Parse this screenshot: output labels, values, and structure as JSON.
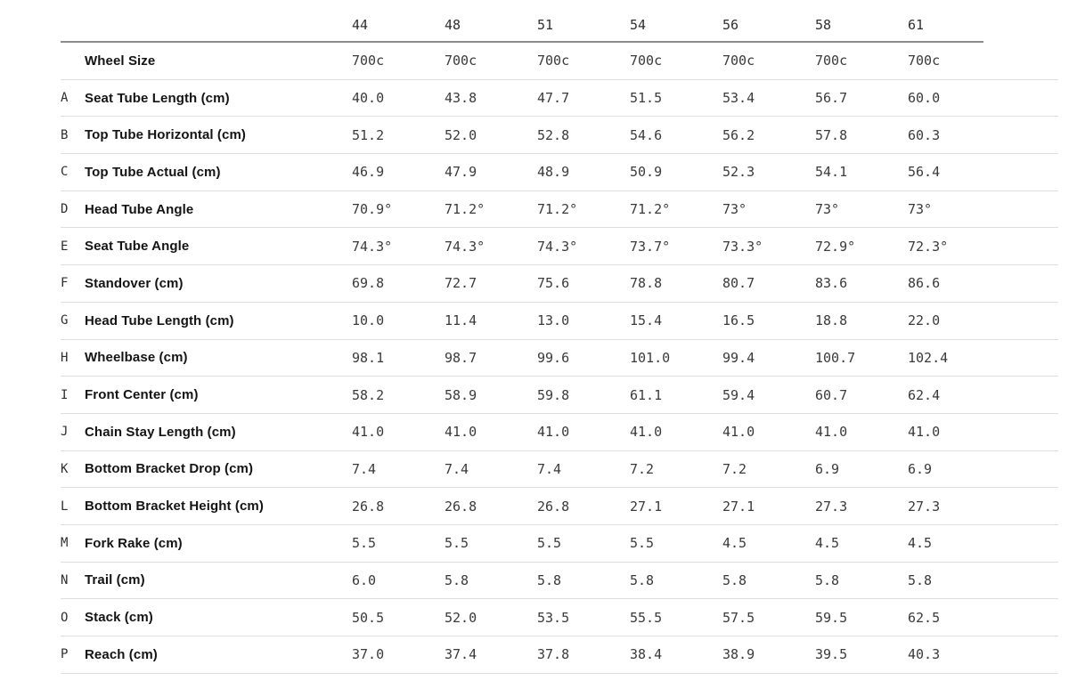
{
  "chart_data": {
    "type": "table",
    "title": "",
    "columns": [
      "44",
      "48",
      "51",
      "54",
      "56",
      "58",
      "61"
    ],
    "rows": [
      {
        "letter": "",
        "label": "Wheel Size",
        "values": [
          "700c",
          "700c",
          "700c",
          "700c",
          "700c",
          "700c",
          "700c"
        ]
      },
      {
        "letter": "A",
        "label": "Seat Tube Length (cm)",
        "values": [
          "40.0",
          "43.8",
          "47.7",
          "51.5",
          "53.4",
          "56.7",
          "60.0"
        ]
      },
      {
        "letter": "B",
        "label": "Top Tube Horizontal (cm)",
        "values": [
          "51.2",
          "52.0",
          "52.8",
          "54.6",
          "56.2",
          "57.8",
          "60.3"
        ]
      },
      {
        "letter": "C",
        "label": "Top Tube Actual (cm)",
        "values": [
          "46.9",
          "47.9",
          "48.9",
          "50.9",
          "52.3",
          "54.1",
          "56.4"
        ]
      },
      {
        "letter": "D",
        "label": "Head Tube Angle",
        "values": [
          "70.9°",
          "71.2°",
          "71.2°",
          "71.2°",
          "73°",
          "73°",
          "73°"
        ]
      },
      {
        "letter": "E",
        "label": "Seat Tube Angle",
        "values": [
          "74.3°",
          "74.3°",
          "74.3°",
          "73.7°",
          "73.3°",
          "72.9°",
          "72.3°"
        ]
      },
      {
        "letter": "F",
        "label": "Standover (cm)",
        "values": [
          "69.8",
          "72.7",
          "75.6",
          "78.8",
          "80.7",
          "83.6",
          "86.6"
        ]
      },
      {
        "letter": "G",
        "label": "Head Tube Length (cm)",
        "values": [
          "10.0",
          "11.4",
          "13.0",
          "15.4",
          "16.5",
          "18.8",
          "22.0"
        ]
      },
      {
        "letter": "H",
        "label": "Wheelbase (cm)",
        "values": [
          "98.1",
          "98.7",
          "99.6",
          "101.0",
          "99.4",
          "100.7",
          "102.4"
        ]
      },
      {
        "letter": "I",
        "label": "Front Center (cm)",
        "values": [
          "58.2",
          "58.9",
          "59.8",
          "61.1",
          "59.4",
          "60.7",
          "62.4"
        ]
      },
      {
        "letter": "J",
        "label": "Chain Stay Length (cm)",
        "values": [
          "41.0",
          "41.0",
          "41.0",
          "41.0",
          "41.0",
          "41.0",
          "41.0"
        ]
      },
      {
        "letter": "K",
        "label": "Bottom Bracket Drop (cm)",
        "values": [
          "7.4",
          "7.4",
          "7.4",
          "7.2",
          "7.2",
          "6.9",
          "6.9"
        ]
      },
      {
        "letter": "L",
        "label": "Bottom Bracket Height (cm)",
        "values": [
          "26.8",
          "26.8",
          "26.8",
          "27.1",
          "27.1",
          "27.3",
          "27.3"
        ]
      },
      {
        "letter": "M",
        "label": "Fork Rake (cm)",
        "values": [
          "5.5",
          "5.5",
          "5.5",
          "5.5",
          "4.5",
          "4.5",
          "4.5"
        ]
      },
      {
        "letter": "N",
        "label": "Trail (cm)",
        "values": [
          "6.0",
          "5.8",
          "5.8",
          "5.8",
          "5.8",
          "5.8",
          "5.8"
        ]
      },
      {
        "letter": "O",
        "label": "Stack (cm)",
        "values": [
          "50.5",
          "52.0",
          "53.5",
          "55.5",
          "57.5",
          "59.5",
          "62.5"
        ]
      },
      {
        "letter": "P",
        "label": "Reach (cm)",
        "values": [
          "37.0",
          "37.4",
          "37.8",
          "38.4",
          "38.9",
          "39.5",
          "40.3"
        ]
      }
    ],
    "colors": {
      "header_rule": "#8c8c8c",
      "row_rule": "#dddddd",
      "label_text": "#141414",
      "value_text": "#3a3a3a",
      "background": "#ffffff"
    },
    "layout": {
      "grid": "horizontal rules only",
      "value_alignment": "left"
    }
  }
}
